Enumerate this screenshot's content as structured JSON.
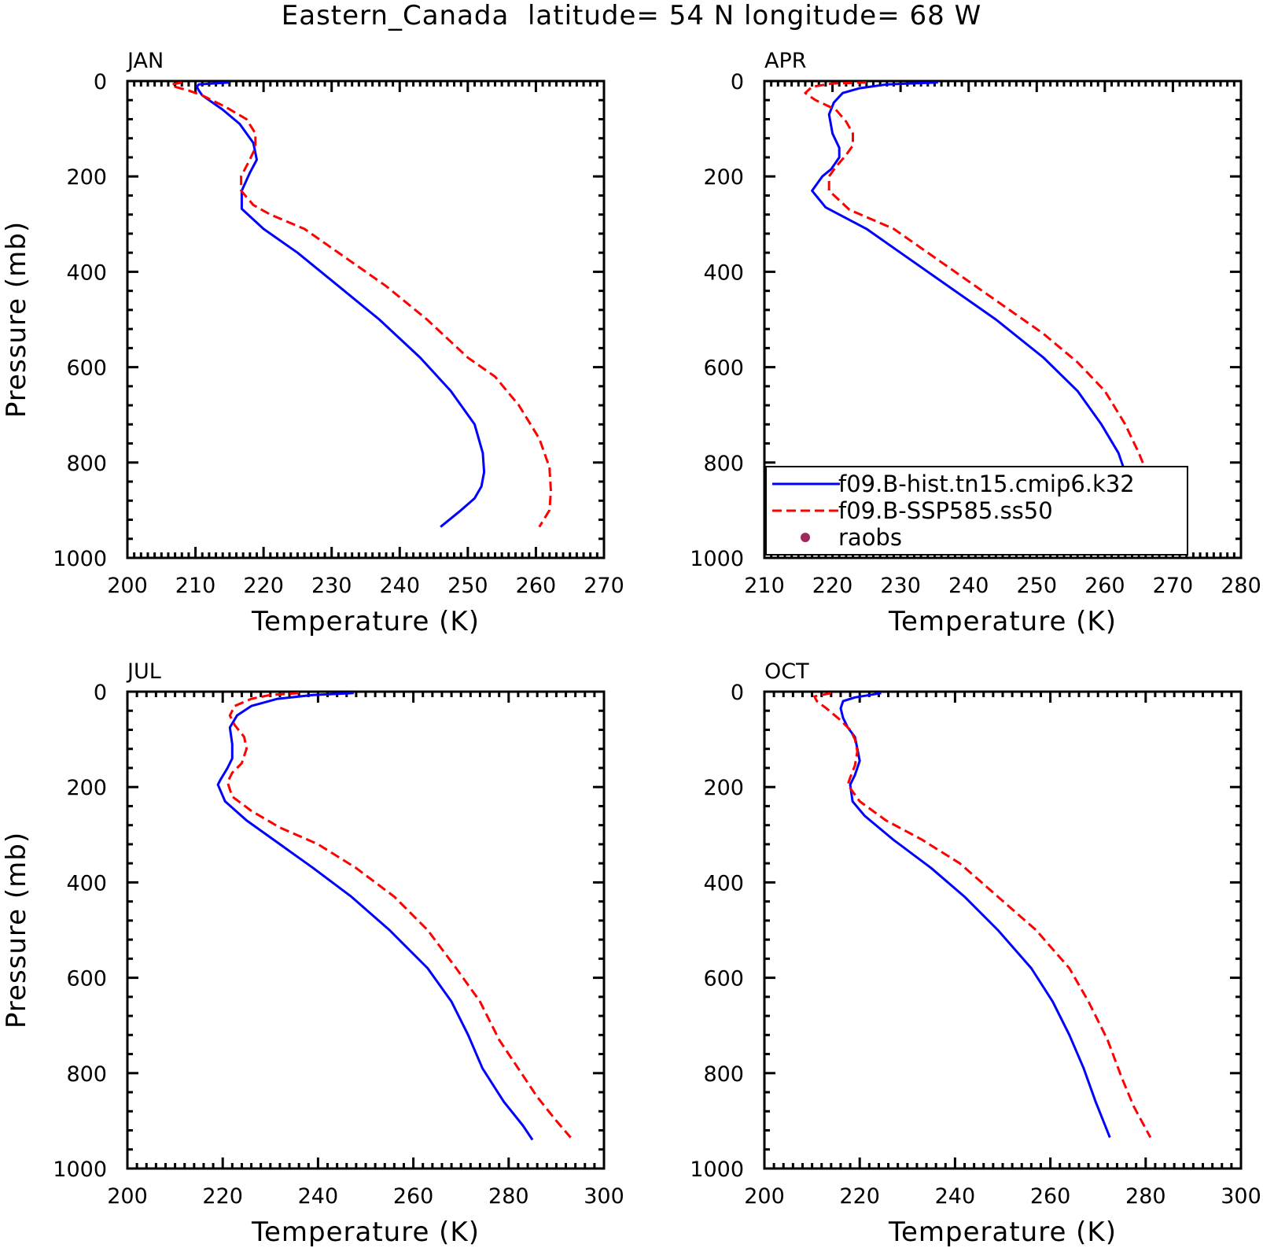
{
  "title": "Eastern_Canada  latitude= 54 N longitude= 68 W",
  "chart_data": [
    {
      "type": "line",
      "panel_title": "JAN",
      "xlabel": "Temperature (K)",
      "ylabel": "Pressure (mb)",
      "xlim": [
        200,
        270
      ],
      "ylim": [
        1000,
        0
      ],
      "y_inverted": true,
      "xticks": [
        200,
        210,
        220,
        230,
        240,
        250,
        260,
        270
      ],
      "yticks": [
        0,
        200,
        400,
        600,
        800,
        1000
      ],
      "series": [
        {
          "name": "f09.B-hist.tn15.cmip6.k32",
          "color": "#0000ff",
          "dash": "solid",
          "points": [
            [
              215.0,
              3
            ],
            [
              210.5,
              7
            ],
            [
              210.2,
              12
            ],
            [
              210.5,
              20
            ],
            [
              211.0,
              30
            ],
            [
              214,
              60
            ],
            [
              216.5,
              90
            ],
            [
              218.5,
              130
            ],
            [
              219.0,
              165
            ],
            [
              218.0,
              192
            ],
            [
              216.8,
              230
            ],
            [
              216.8,
              268
            ],
            [
              220,
              310
            ],
            [
              225,
              360
            ],
            [
              231,
              430
            ],
            [
              237,
              500
            ],
            [
              243,
              580
            ],
            [
              247.5,
              650
            ],
            [
              251,
              720
            ],
            [
              252.2,
              780
            ],
            [
              252.4,
              820
            ],
            [
              252,
              850
            ],
            [
              251,
              875
            ],
            [
              249,
              900
            ],
            [
              246,
              935
            ]
          ]
        },
        {
          "name": "f09.B-SSP585.ss50",
          "color": "#ff0000",
          "dash": "dashed",
          "points": [
            [
              208.0,
              3
            ],
            [
              206.5,
              7
            ],
            [
              207,
              12
            ],
            [
              209,
              20
            ],
            [
              211,
              30
            ],
            [
              214.5,
              55
            ],
            [
              217.5,
              80
            ],
            [
              218.8,
              110
            ],
            [
              218.8,
              140
            ],
            [
              217.8,
              170
            ],
            [
              216.7,
              200
            ],
            [
              216.7,
              230
            ],
            [
              218.5,
              260
            ],
            [
              221,
              280
            ],
            [
              226,
              310
            ],
            [
              232,
              370
            ],
            [
              238,
              430
            ],
            [
              244,
              500
            ],
            [
              250,
              580
            ],
            [
              254,
              620
            ],
            [
              257.5,
              680
            ],
            [
              260.5,
              750
            ],
            [
              262,
              810
            ],
            [
              262.2,
              860
            ],
            [
              262,
              900
            ],
            [
              260.5,
              935
            ]
          ]
        }
      ]
    },
    {
      "type": "line",
      "panel_title": "APR",
      "xlabel": "Temperature (K)",
      "ylabel": "",
      "xlim": [
        210,
        280
      ],
      "ylim": [
        1000,
        0
      ],
      "y_inverted": true,
      "xticks": [
        210,
        220,
        230,
        240,
        250,
        260,
        270,
        280
      ],
      "yticks": [
        0,
        200,
        400,
        600,
        800,
        1000
      ],
      "series": [
        {
          "name": "f09.B-hist.tn15.cmip6.k32",
          "color": "#0000ff",
          "dash": "solid",
          "points": [
            [
              235.5,
              3
            ],
            [
              228,
              7
            ],
            [
              224,
              15
            ],
            [
              221.5,
              25
            ],
            [
              220.2,
              45
            ],
            [
              219.5,
              70
            ],
            [
              220,
              110
            ],
            [
              221,
              140
            ],
            [
              221,
              160
            ],
            [
              219.8,
              185
            ],
            [
              218.5,
              200
            ],
            [
              217,
              230
            ],
            [
              219,
              265
            ],
            [
              225,
              310
            ],
            [
              230,
              360
            ],
            [
              237,
              430
            ],
            [
              244,
              500
            ],
            [
              251,
              580
            ],
            [
              256,
              650
            ],
            [
              259.5,
              720
            ],
            [
              262,
              780
            ],
            [
              263.2,
              830
            ],
            [
              264,
              880
            ],
            [
              265,
              910
            ],
            [
              266,
              935
            ]
          ]
        },
        {
          "name": "f09.B-SSP585.ss50",
          "color": "#ff0000",
          "dash": "dashed",
          "points": [
            [
              225.0,
              3
            ],
            [
              220,
              5
            ],
            [
              217,
              12
            ],
            [
              216,
              25
            ],
            [
              217.5,
              40
            ],
            [
              220.5,
              60
            ],
            [
              222,
              85
            ],
            [
              223,
              110
            ],
            [
              223,
              135
            ],
            [
              222,
              155
            ],
            [
              220.5,
              180
            ],
            [
              219.5,
              200
            ],
            [
              219.5,
              230
            ],
            [
              222.5,
              270
            ],
            [
              229,
              310
            ],
            [
              236,
              380
            ],
            [
              243,
              450
            ],
            [
              251,
              530
            ],
            [
              256,
              590
            ],
            [
              260,
              650
            ],
            [
              263,
              720
            ],
            [
              265,
              780
            ],
            [
              267,
              850
            ],
            [
              269,
              890
            ],
            [
              271,
              920
            ],
            [
              272,
              940
            ]
          ]
        }
      ]
    },
    {
      "type": "line",
      "panel_title": "JUL",
      "xlabel": "Temperature (K)",
      "ylabel": "Pressure (mb)",
      "xlim": [
        200,
        300
      ],
      "ylim": [
        1000,
        0
      ],
      "y_inverted": true,
      "xticks": [
        200,
        220,
        240,
        260,
        280,
        300
      ],
      "yticks": [
        0,
        200,
        400,
        600,
        800,
        1000
      ],
      "series": [
        {
          "name": "f09.B-hist.tn15.cmip6.k32",
          "color": "#0000ff",
          "dash": "solid",
          "points": [
            [
              247.5,
              3
            ],
            [
              239,
              7
            ],
            [
              231.5,
              15
            ],
            [
              226,
              30
            ],
            [
              223,
              50
            ],
            [
              221.5,
              75
            ],
            [
              222,
              110
            ],
            [
              222,
              140
            ],
            [
              221,
              160
            ],
            [
              219.5,
              185
            ],
            [
              219,
              195
            ],
            [
              220.5,
              230
            ],
            [
              225,
              270
            ],
            [
              232,
              320
            ],
            [
              239,
              370
            ],
            [
              247,
              430
            ],
            [
              255,
              500
            ],
            [
              263,
              580
            ],
            [
              268,
              650
            ],
            [
              271.5,
              720
            ],
            [
              274.5,
              790
            ],
            [
              279,
              860
            ],
            [
              283,
              910
            ],
            [
              285,
              940
            ]
          ]
        },
        {
          "name": "f09.B-SSP585.ss50",
          "color": "#ff0000",
          "dash": "dashed",
          "points": [
            [
              236,
              3
            ],
            [
              230,
              7
            ],
            [
              226,
              15
            ],
            [
              222.5,
              30
            ],
            [
              221.5,
              50
            ],
            [
              222.5,
              70
            ],
            [
              224.5,
              95
            ],
            [
              225,
              120
            ],
            [
              224,
              150
            ],
            [
              222,
              170
            ],
            [
              221,
              190
            ],
            [
              222,
              220
            ],
            [
              226,
              250
            ],
            [
              232,
              285
            ],
            [
              240,
              320
            ],
            [
              248,
              370
            ],
            [
              256,
              430
            ],
            [
              263,
              500
            ],
            [
              269,
              580
            ],
            [
              274,
              650
            ],
            [
              278,
              730
            ],
            [
              282,
              790
            ],
            [
              286,
              850
            ],
            [
              290,
              900
            ],
            [
              293,
              935
            ]
          ]
        }
      ]
    },
    {
      "type": "line",
      "panel_title": "OCT",
      "xlabel": "Temperature (K)",
      "ylabel": "",
      "xlim": [
        200,
        300
      ],
      "ylim": [
        1000,
        0
      ],
      "y_inverted": true,
      "xticks": [
        200,
        220,
        240,
        260,
        280,
        300
      ],
      "yticks": [
        0,
        200,
        400,
        600,
        800,
        1000
      ],
      "series": [
        {
          "name": "f09.B-hist.tn15.cmip6.k32",
          "color": "#0000ff",
          "dash": "solid",
          "points": [
            [
              224.5,
              3
            ],
            [
              219,
              12
            ],
            [
              216.5,
              20
            ],
            [
              216,
              35
            ],
            [
              216.5,
              55
            ],
            [
              217.5,
              75
            ],
            [
              219,
              95
            ],
            [
              219.5,
              120
            ],
            [
              220,
              145
            ],
            [
              219,
              175
            ],
            [
              218,
              195
            ],
            [
              218.5,
              230
            ],
            [
              221,
              260
            ],
            [
              227,
              310
            ],
            [
              235,
              370
            ],
            [
              242,
              430
            ],
            [
              249,
              500
            ],
            [
              256,
              580
            ],
            [
              260.5,
              650
            ],
            [
              264,
              720
            ],
            [
              267,
              790
            ],
            [
              269.5,
              860
            ],
            [
              271.5,
              910
            ],
            [
              272.5,
              935
            ]
          ]
        },
        {
          "name": "f09.B-SSP585.ss50",
          "color": "#ff0000",
          "dash": "dashed",
          "points": [
            [
              214,
              3
            ],
            [
              210.5,
              10
            ],
            [
              211,
              20
            ],
            [
              213,
              35
            ],
            [
              216,
              60
            ],
            [
              218,
              80
            ],
            [
              219,
              100
            ],
            [
              219.5,
              125
            ],
            [
              219,
              155
            ],
            [
              218,
              180
            ],
            [
              217.5,
              195
            ],
            [
              220,
              230
            ],
            [
              225.5,
              270
            ],
            [
              233,
              310
            ],
            [
              241,
              360
            ],
            [
              249,
              430
            ],
            [
              257,
              500
            ],
            [
              264,
              580
            ],
            [
              268,
              650
            ],
            [
              272,
              730
            ],
            [
              275,
              810
            ],
            [
              277.5,
              870
            ],
            [
              281,
              935
            ]
          ]
        }
      ]
    }
  ],
  "legend": {
    "entries": [
      {
        "label": "f09.B-hist.tn15.cmip6.k32",
        "style": "line",
        "color": "#0000ff"
      },
      {
        "label": "f09.B-SSP585.ss50",
        "style": "dashed",
        "color": "#ff0000"
      },
      {
        "label": "raobs",
        "style": "marker",
        "color": "#a0285a"
      }
    ]
  }
}
